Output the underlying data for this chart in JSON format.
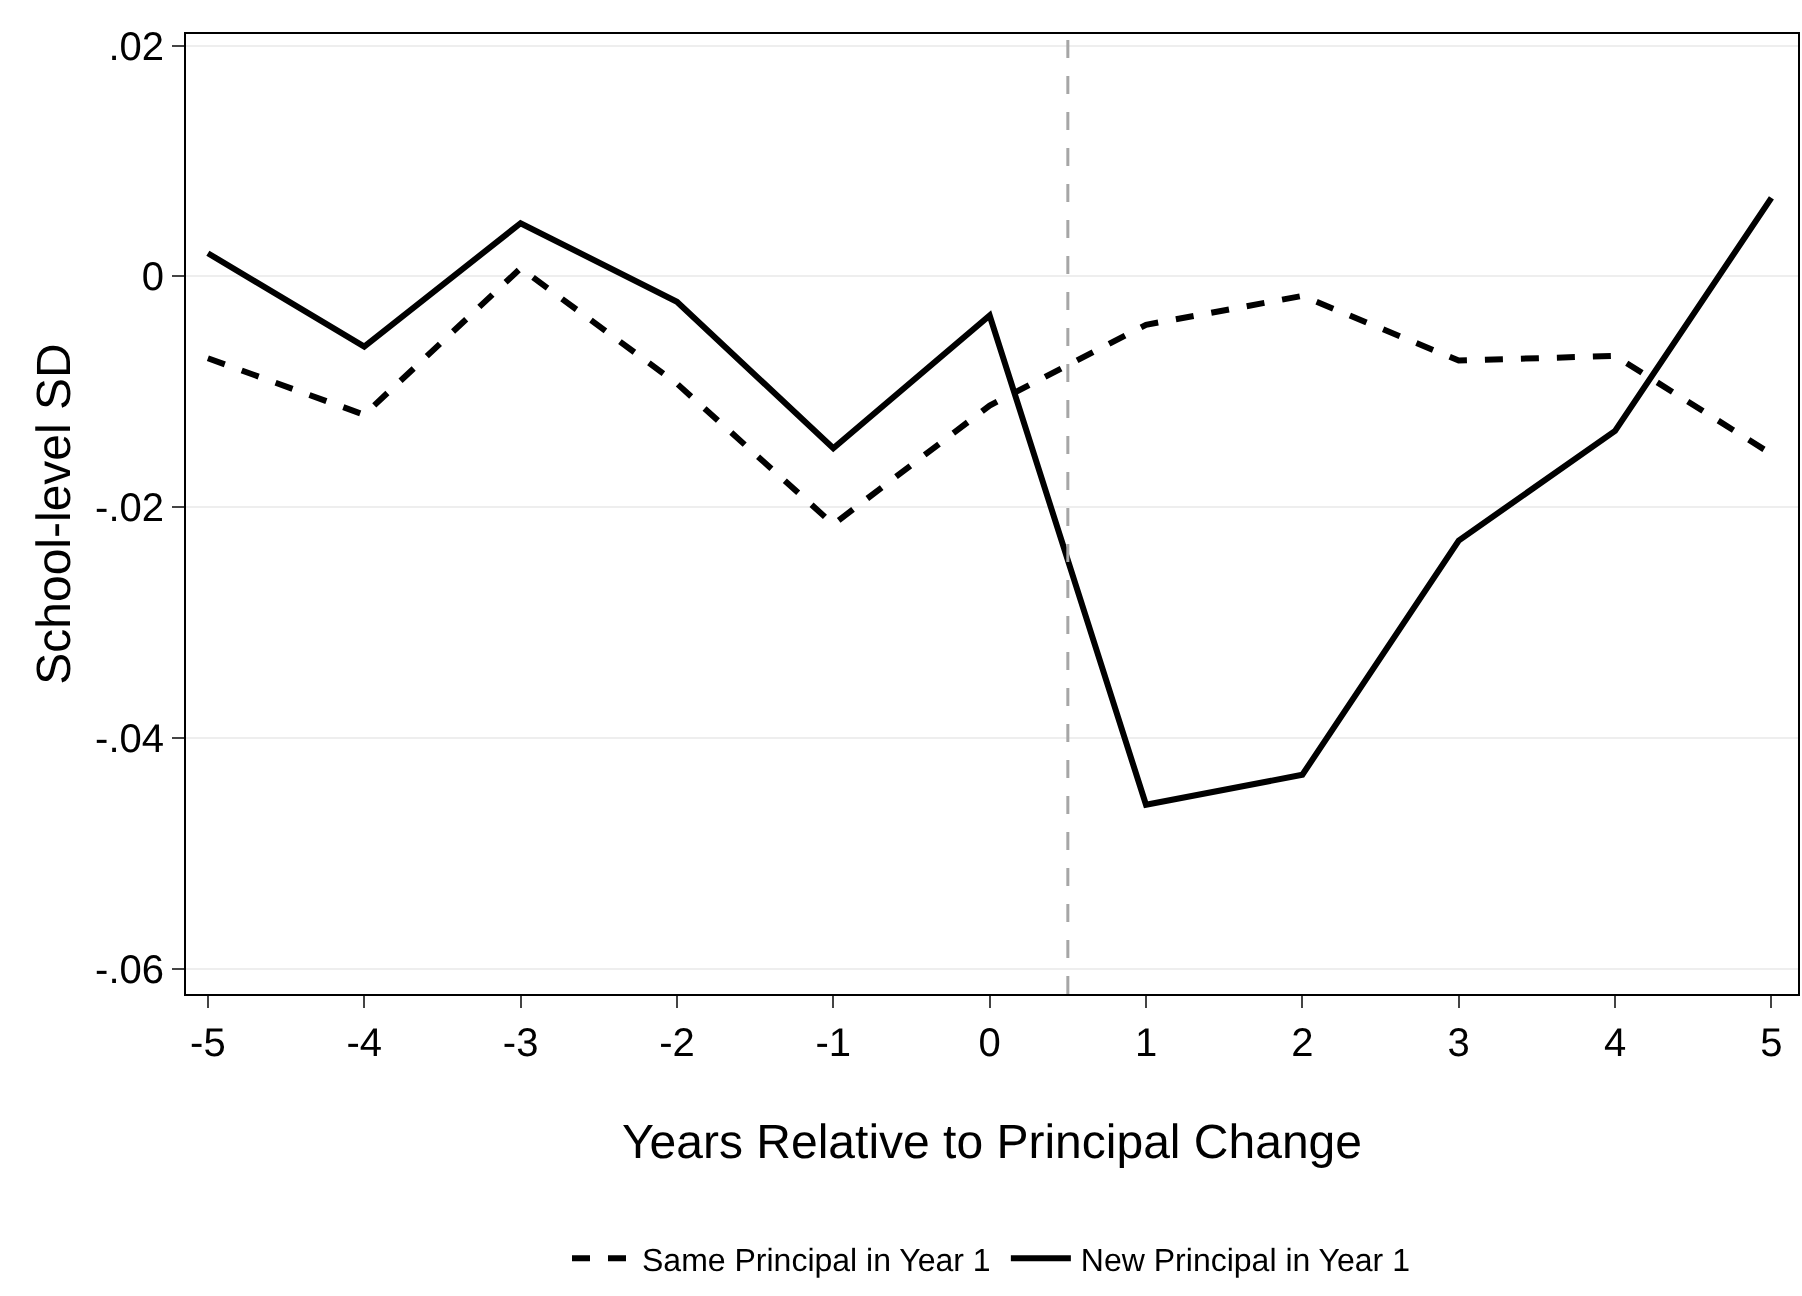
{
  "chart_data": {
    "type": "line",
    "xlabel": "Years Relative to Principal Change",
    "ylabel": "School-level SD",
    "x": [
      -5,
      -4,
      -3,
      -2,
      -1,
      0,
      1,
      2,
      3,
      4,
      5
    ],
    "series": [
      {
        "name": "Same Principal in Year 1",
        "color": "#000000",
        "line_style": "dashed",
        "values": [
          -0.0071,
          -0.012,
          0.0007,
          -0.0093,
          -0.0215,
          -0.0112,
          -0.0042,
          -0.0017,
          -0.0073,
          -0.0069,
          -0.0154
        ]
      },
      {
        "name": "New Principal in Year 1",
        "color": "#000000",
        "line_style": "solid",
        "values": [
          0.002,
          -0.0061,
          0.0046,
          -0.0022,
          -0.0149,
          -0.0034,
          -0.0458,
          -0.0432,
          -0.0229,
          -0.0134,
          0.0068
        ]
      }
    ],
    "xlim": [
      -5.14,
      5.17
    ],
    "ylim": [
      -0.0622,
      0.021
    ],
    "xticks": [
      -5,
      -4,
      -3,
      -2,
      -1,
      0,
      1,
      2,
      3,
      4,
      5
    ],
    "yticks": [
      {
        "value": 0.02,
        "label": ".02"
      },
      0,
      {
        "value": -0.02,
        "label": "-.02"
      },
      {
        "value": -0.04,
        "label": "-.04"
      },
      {
        "value": -0.06,
        "label": "-.06"
      }
    ],
    "ref_lines": [
      {
        "axis": "x",
        "value": 0.5,
        "color": "#a6a6a6",
        "line_style": "dashed"
      }
    ],
    "grid": "y",
    "legend": "bottom",
    "marker": "none"
  }
}
